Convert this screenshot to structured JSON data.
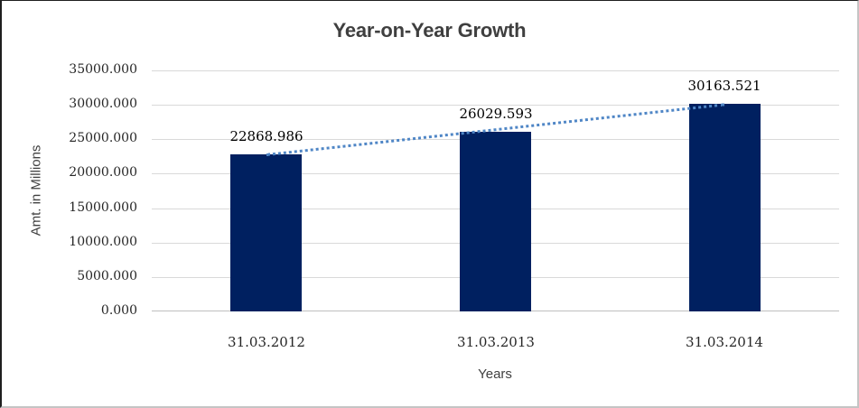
{
  "chart_data": {
    "type": "bar",
    "title": "Year-on-Year Growth",
    "xlabel": "Years",
    "ylabel": "Amt. in Millions",
    "categories": [
      "31.03.2012",
      "31.03.2013",
      "31.03.2014"
    ],
    "series": [
      {
        "values": [
          22868.986,
          26029.593,
          30163.521
        ]
      }
    ],
    "data_labels": [
      "22868.986",
      "26029.593",
      "30163.521"
    ],
    "ylim": [
      0,
      35000
    ],
    "ytick_step": 5000,
    "ytick_labels": [
      "0.000",
      "5000.000",
      "10000.000",
      "15000.000",
      "20000.000",
      "25000.000",
      "30000.000",
      "35000.000"
    ],
    "grid": true,
    "legend_position": "none",
    "trendline": {
      "type": "linear",
      "style": "dotted"
    },
    "colors": {
      "bar": "#002060",
      "trendline": "#4f86c6",
      "gridline": "#d9d9d9",
      "axis_line": "#bfbfbf",
      "title_text": "#3f3f3f",
      "axis_title_text": "#404040",
      "tick_text": "#262626",
      "data_label_text": "#000000",
      "background": "#ffffff"
    }
  }
}
